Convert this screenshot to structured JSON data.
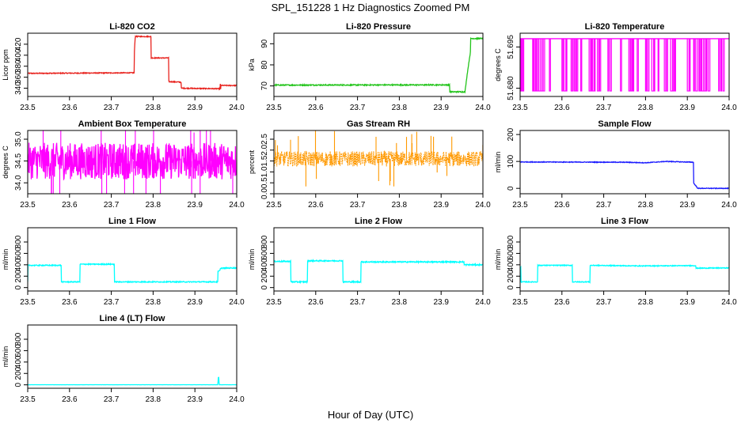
{
  "title": "SPL_151228  1 Hz Diagnostics Zoomed PM",
  "xlabel": "Hour of Day (UTC)",
  "colors": {
    "red": "#e8231e",
    "green": "#22c41a",
    "magenta": "#ff00ff",
    "orange": "#ff9900",
    "blue": "#1a1aff",
    "cyan": "#00ffff"
  },
  "chart_data": [
    {
      "type": "line",
      "title": "Li-820 CO2",
      "ylabel": "Licor ppm",
      "color": "red",
      "xlim": [
        23.5,
        24.0
      ],
      "ylim": [
        325,
        440
      ],
      "x_ticks": [
        "23.5",
        "23.6",
        "23.7",
        "23.8",
        "23.9",
        "24.0"
      ],
      "y_ticks": [
        340,
        360,
        380,
        400,
        420
      ],
      "noise": 0.8,
      "x": [
        23.5,
        23.755,
        23.755,
        23.757,
        23.757,
        23.795,
        23.795,
        23.837,
        23.837,
        23.867,
        23.867,
        23.96,
        23.96,
        23.962,
        23.962,
        24.0
      ],
      "y": [
        367,
        368,
        400,
        432,
        434,
        434,
        395,
        395,
        352,
        351,
        340,
        339,
        357,
        332,
        345,
        345
      ]
    },
    {
      "type": "line",
      "title": "Li-820 Pressure",
      "ylabel": "kPa",
      "color": "green",
      "xlim": [
        23.5,
        24.0
      ],
      "ylim": [
        65,
        95
      ],
      "x_ticks": [
        "23.5",
        "23.6",
        "23.7",
        "23.8",
        "23.9",
        "24.0"
      ],
      "y_ticks": [
        70,
        80,
        90
      ],
      "noise": 0.25,
      "x": [
        23.5,
        23.92,
        23.92,
        23.957,
        23.962,
        23.97,
        23.97,
        24.0
      ],
      "y": [
        70.4,
        70.5,
        67.2,
        67.2,
        75,
        86,
        92.5,
        92.5
      ]
    },
    {
      "type": "line",
      "title": "Li-820 Temperature",
      "ylabel": "degrees C",
      "color": "magenta",
      "xlim": [
        23.5,
        24.0
      ],
      "ylim": [
        51.677,
        51.7
      ],
      "x_ticks": [
        "23.5",
        "23.6",
        "23.7",
        "23.8",
        "23.9",
        "24.0"
      ],
      "y_ticks": [
        51.68,
        51.695
      ],
      "y_tick_labels": [
        "51.680",
        "51.695"
      ],
      "noise": 0,
      "high": 51.698,
      "low": 51.679,
      "drops": [
        23.5,
        23.502,
        23.504,
        23.506,
        23.53,
        23.533,
        23.536,
        23.54,
        23.545,
        23.55,
        23.555,
        23.57,
        23.6,
        23.605,
        23.61,
        23.622,
        23.625,
        23.63,
        23.635,
        23.645,
        23.665,
        23.67,
        23.673,
        23.677,
        23.685,
        23.69,
        23.71,
        23.715,
        23.74,
        23.76,
        23.765,
        23.77,
        23.78,
        23.8,
        23.805,
        23.815,
        23.82,
        23.83,
        23.845,
        23.85,
        23.86,
        23.865,
        23.87,
        23.9,
        23.905,
        23.915,
        23.92,
        23.928,
        23.93,
        23.935,
        23.94,
        23.945,
        23.95,
        23.975,
        23.98,
        23.985
      ]
    },
    {
      "type": "line",
      "title": "Ambient Box Temperature",
      "ylabel": "degrees C",
      "color": "magenta",
      "xlim": [
        23.5,
        24.0
      ],
      "ylim": [
        33.75,
        35.2
      ],
      "x_ticks": [
        "23.5",
        "23.6",
        "23.7",
        "23.8",
        "23.9",
        "24.0"
      ],
      "y_ticks": [
        34.0,
        34.5,
        35.0
      ],
      "y_tick_labels": [
        "34.0",
        "34.5",
        "35.0"
      ],
      "noise": 0.42,
      "x": [
        23.5,
        24.0
      ],
      "y": [
        34.5,
        34.5
      ]
    },
    {
      "type": "line",
      "title": "Gas Stream RH",
      "ylabel": "percent",
      "color": "orange",
      "xlim": [
        23.5,
        24.0
      ],
      "ylim": [
        0,
        2.9
      ],
      "x_ticks": [
        "23.5",
        "23.6",
        "23.7",
        "23.8",
        "23.9",
        "24.0"
      ],
      "y_ticks": [
        0.0,
        0.5,
        1.0,
        1.5,
        2.0,
        2.5
      ],
      "y_tick_labels": [
        "0.0",
        "0.5",
        "1.0",
        "1.5",
        "2.0",
        "2.5"
      ],
      "noise": 0.35,
      "points": true,
      "x": [
        23.5,
        24.0
      ],
      "y": [
        1.6,
        1.6
      ]
    },
    {
      "type": "line",
      "title": "Sample Flow",
      "ylabel": "ml/min",
      "color": "blue",
      "xlim": [
        23.5,
        24.0
      ],
      "ylim": [
        -20,
        215
      ],
      "x_ticks": [
        "23.5",
        "23.6",
        "23.7",
        "23.8",
        "23.9",
        "24.0"
      ],
      "y_ticks": [
        0,
        100,
        200
      ],
      "noise": 1.2,
      "x": [
        23.5,
        23.75,
        23.8,
        23.85,
        23.915,
        23.915,
        23.925,
        24.0
      ],
      "y": [
        98,
        97,
        95,
        100,
        97,
        20,
        0,
        0
      ]
    },
    {
      "type": "line",
      "title": "Line 1 Flow",
      "ylabel": "ml/min",
      "color": "cyan",
      "xlim": [
        23.5,
        24.0
      ],
      "ylim": [
        -60,
        1050
      ],
      "x_ticks": [
        "23.5",
        "23.6",
        "23.7",
        "23.8",
        "23.9",
        "24.0"
      ],
      "y_ticks": [
        0,
        200,
        400,
        600,
        800
      ],
      "noise": 8,
      "x": [
        23.5,
        23.5,
        23.503,
        23.58,
        23.58,
        23.625,
        23.625,
        23.707,
        23.707,
        23.955,
        23.955,
        23.96,
        23.96,
        24.0
      ],
      "y": [
        100,
        390,
        390,
        390,
        100,
        100,
        410,
        410,
        100,
        100,
        280,
        300,
        340,
        345
      ]
    },
    {
      "type": "line",
      "title": "Line 2 Flow",
      "ylabel": "ml/min",
      "color": "cyan",
      "xlim": [
        23.5,
        24.0
      ],
      "ylim": [
        -60,
        1050
      ],
      "x_ticks": [
        "23.5",
        "23.6",
        "23.7",
        "23.8",
        "23.9",
        "24.0"
      ],
      "y_ticks": [
        0,
        200,
        400,
        600,
        800
      ],
      "noise": 10,
      "x": [
        23.5,
        23.54,
        23.54,
        23.58,
        23.58,
        23.665,
        23.665,
        23.708,
        23.708,
        23.955,
        23.955,
        24.0
      ],
      "y": [
        460,
        460,
        100,
        100,
        470,
        470,
        100,
        100,
        450,
        450,
        400,
        400
      ]
    },
    {
      "type": "line",
      "title": "Line 3 Flow",
      "ylabel": "ml/min",
      "color": "cyan",
      "xlim": [
        23.5,
        24.0
      ],
      "ylim": [
        -60,
        1050
      ],
      "x_ticks": [
        "23.5",
        "23.6",
        "23.7",
        "23.8",
        "23.9",
        "24.0"
      ],
      "y_ticks": [
        0,
        200,
        400,
        600,
        800
      ],
      "noise": 7,
      "x": [
        23.5,
        23.5,
        23.502,
        23.502,
        23.542,
        23.542,
        23.625,
        23.625,
        23.667,
        23.667,
        23.79,
        23.92,
        23.92,
        24.0
      ],
      "y": [
        240,
        350,
        350,
        100,
        100,
        390,
        390,
        100,
        100,
        390,
        380,
        385,
        340,
        345
      ]
    },
    {
      "type": "line",
      "title": "Line 4 (LT) Flow",
      "ylabel": "ml/min",
      "color": "cyan",
      "xlim": [
        23.5,
        24.0
      ],
      "ylim": [
        -60,
        1050
      ],
      "x_ticks": [
        "23.5",
        "23.6",
        "23.7",
        "23.8",
        "23.9",
        "24.0"
      ],
      "y_ticks": [
        0,
        200,
        400,
        600,
        800
      ],
      "noise": 1,
      "x": [
        23.5,
        23.955,
        23.956,
        23.957,
        23.958,
        24.0
      ],
      "y": [
        2,
        2,
        130,
        130,
        2,
        2
      ]
    }
  ]
}
